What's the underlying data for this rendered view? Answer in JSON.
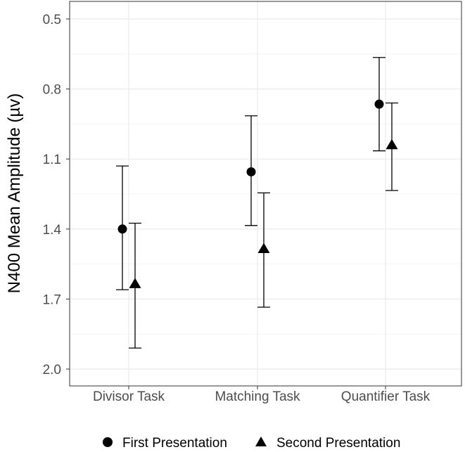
{
  "chart_data": {
    "type": "scatter",
    "title": "",
    "xlabel": "",
    "ylabel": "N400 Mean Amplitude (µv)",
    "y_reversed": true,
    "ylim": [
      0.5,
      2.0
    ],
    "yticks": [
      0.5,
      0.8,
      1.1,
      1.4,
      1.7,
      2.0
    ],
    "ytick_labels": [
      "0.5",
      "0.8",
      "1.1",
      "1.4",
      "1.7",
      "2.0"
    ],
    "categories": [
      "Divisor Task",
      "Matching Task",
      "Quantifier Task"
    ],
    "grid": true,
    "legend_position": "bottom",
    "series": [
      {
        "name": "First Presentation",
        "marker": "circle",
        "values": [
          1.4,
          1.155,
          0.865
        ],
        "lower": [
          1.13,
          0.915,
          0.665
        ],
        "upper": [
          1.66,
          1.385,
          1.065
        ]
      },
      {
        "name": "Second Presentation",
        "marker": "triangle",
        "values": [
          1.635,
          1.485,
          1.04
        ],
        "lower": [
          1.375,
          1.245,
          0.86
        ],
        "upper": [
          1.91,
          1.735,
          1.235
        ]
      }
    ]
  },
  "colors": {
    "background": "#ffffff",
    "panel_border": "#333333",
    "grid": "#ebebeb",
    "marks": "#000000",
    "tick_text": "#4d4d4d"
  }
}
